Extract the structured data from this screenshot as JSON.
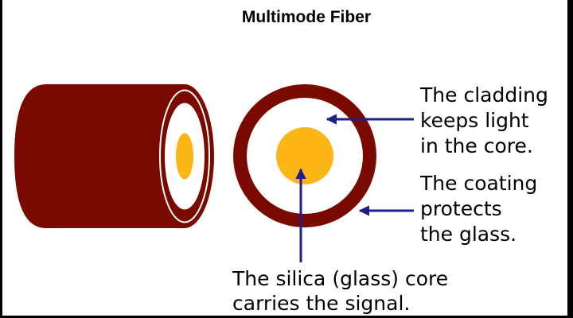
{
  "title": "Multimode Fiber",
  "labels": {
    "cladding": [
      "The cladding",
      "keeps light",
      "in the core."
    ],
    "coating": [
      "The coating",
      "protects",
      "the glass."
    ],
    "core": [
      "The silica (glass) core",
      "carries the signal."
    ]
  },
  "colors": {
    "coating": "#7a0a00",
    "cladding": "#ffffff",
    "core": "#fbb514",
    "arrow": "#1f1f88",
    "text": "#000000",
    "frame": "#000000"
  }
}
